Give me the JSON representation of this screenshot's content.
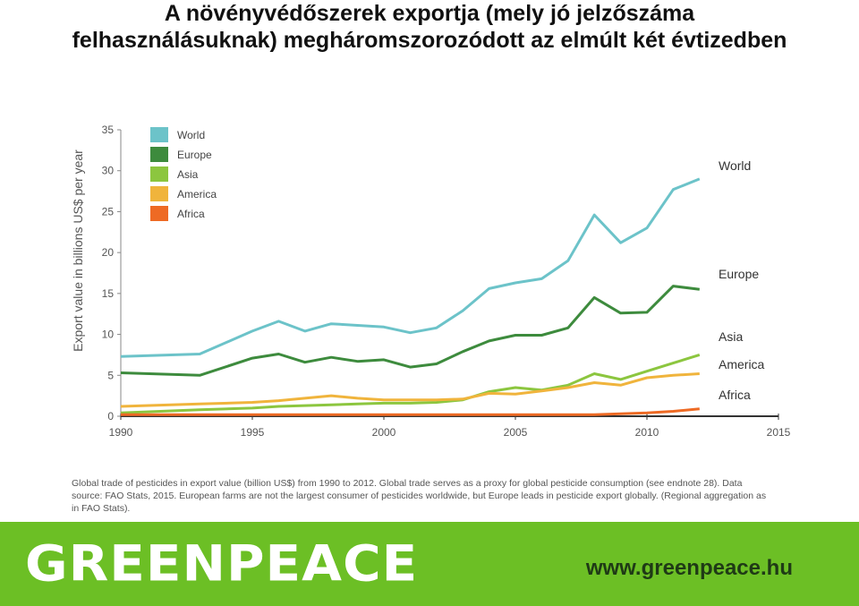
{
  "title": {
    "line1": "A növényvédőszerek exportja (mely jó jelzőszáma",
    "line2": "felhasználásuknak) megháromszorozódott az elmúlt két évtizedben"
  },
  "chart_data": {
    "type": "line",
    "ylabel": "Export value in billions US$ per year",
    "ylim": [
      0,
      35
    ],
    "yticks": [
      0,
      5,
      10,
      15,
      20,
      25,
      30,
      35
    ],
    "xlim": [
      1990,
      2015
    ],
    "xticks": [
      1990,
      1995,
      2000,
      2005,
      2010,
      2015
    ],
    "xtick_labels": [
      "1990",
      "1995",
      "2000",
      "2005",
      "2010",
      "2015"
    ],
    "legend_position": "top-left",
    "x": [
      1990,
      1993,
      1995,
      1996,
      1997,
      1998,
      1999,
      2000,
      2001,
      2002,
      2003,
      2004,
      2005,
      2006,
      2007,
      2008,
      2009,
      2010,
      2011,
      2012
    ],
    "series": [
      {
        "name": "World",
        "color": "#6cc3c9",
        "end_label": "World",
        "values": [
          7.3,
          7.6,
          10.4,
          11.6,
          10.4,
          11.3,
          11.1,
          10.9,
          10.2,
          10.8,
          12.9,
          15.6,
          16.3,
          16.8,
          19.0,
          24.6,
          21.2,
          23.0,
          27.7,
          29.0
        ]
      },
      {
        "name": "Europe",
        "color": "#3d8b3d",
        "end_label": "Europe",
        "values": [
          5.3,
          5.0,
          7.1,
          7.6,
          6.6,
          7.2,
          6.7,
          6.9,
          6.0,
          6.4,
          7.9,
          9.2,
          9.9,
          9.9,
          10.8,
          14.5,
          12.6,
          12.7,
          15.9,
          15.5
        ]
      },
      {
        "name": "Asia",
        "color": "#8cc63f",
        "end_label": "Asia",
        "values": [
          0.4,
          0.8,
          1.0,
          1.2,
          1.3,
          1.4,
          1.5,
          1.6,
          1.6,
          1.7,
          2.0,
          3.0,
          3.5,
          3.2,
          3.8,
          5.2,
          4.5,
          5.5,
          6.5,
          7.5
        ]
      },
      {
        "name": "America",
        "color": "#f0b43c",
        "end_label": "America",
        "values": [
          1.2,
          1.5,
          1.7,
          1.9,
          2.2,
          2.5,
          2.2,
          2.0,
          2.0,
          2.0,
          2.1,
          2.8,
          2.7,
          3.1,
          3.5,
          4.1,
          3.8,
          4.7,
          5.0,
          5.2
        ]
      },
      {
        "name": "Africa",
        "color": "#ee6a24",
        "end_label": "Africa",
        "values": [
          0.2,
          0.2,
          0.2,
          0.2,
          0.2,
          0.2,
          0.2,
          0.2,
          0.2,
          0.2,
          0.2,
          0.2,
          0.2,
          0.2,
          0.2,
          0.2,
          0.3,
          0.4,
          0.6,
          0.9
        ]
      }
    ]
  },
  "caption": "Global trade of pesticides in export value (billion US$) from 1990 to 2012. Global trade serves as a proxy for global pesticide consumption (see endnote 28). Data source: FAO Stats, 2015. European farms are not the largest consumer of pesticides worldwide, but Europe leads in pesticide export globally. (Regional aggregation as in FAO Stats).",
  "footer": {
    "logo_text": "GREENPEACE",
    "url": "www.greenpeace.hu",
    "background_color": "#6cbf25"
  }
}
